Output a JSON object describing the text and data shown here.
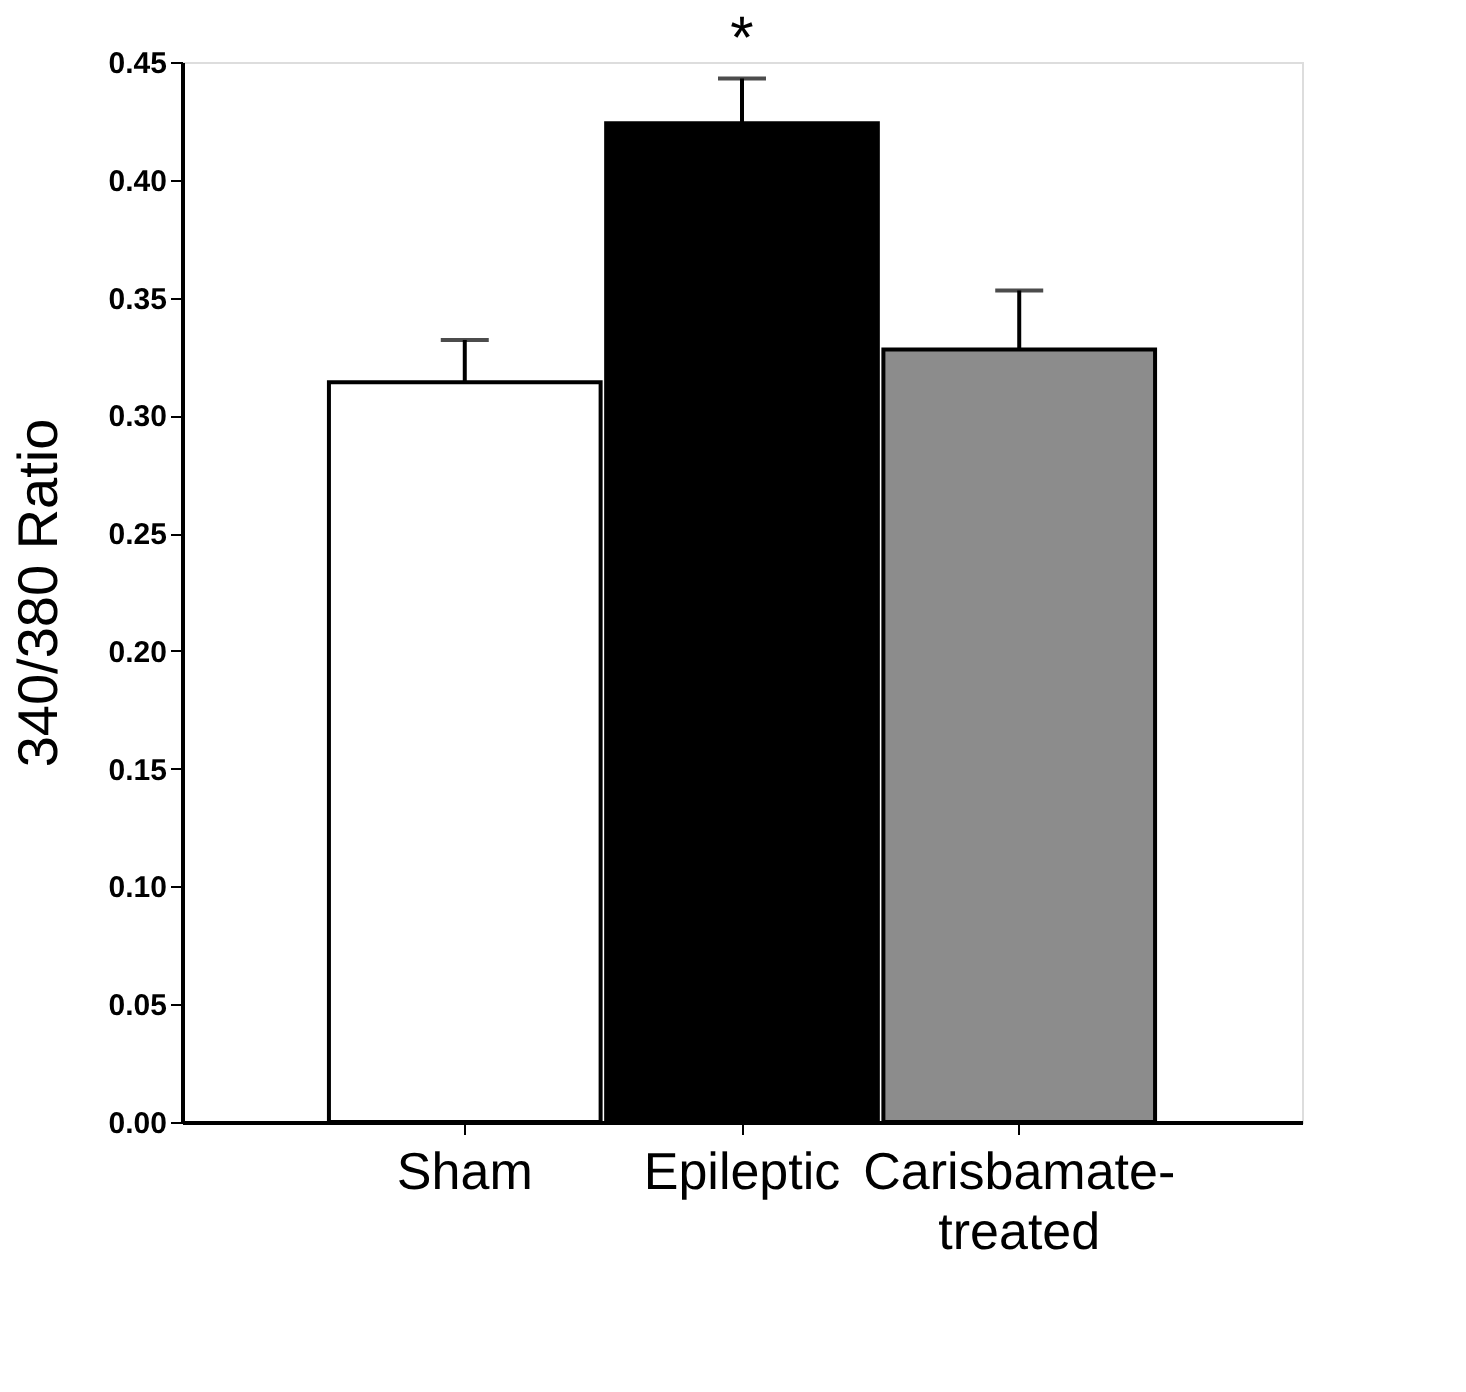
{
  "chart_data": {
    "type": "bar",
    "ylabel": "340/380 Ratio",
    "categories": [
      "Sham",
      "Epileptic",
      "Carisbamate-treated"
    ],
    "values": [
      0.314,
      0.424,
      0.328
    ],
    "colors": [
      "#ffffff",
      "#000000",
      "#8c8c8c"
    ],
    "errors": [
      [
        0.314,
        0.332
      ],
      [
        0.424,
        0.443
      ],
      [
        0.328,
        0.353
      ]
    ],
    "ylim": [
      0,
      0.45
    ],
    "yticks": [
      {
        "value": 0,
        "label": "0.00"
      },
      {
        "value": 0.05,
        "label": "0.05"
      },
      {
        "value": 0.1,
        "label": "0.10"
      },
      {
        "value": 0.15,
        "label": "0.15"
      },
      {
        "value": 0.2,
        "label": "0.20"
      },
      {
        "value": 0.25,
        "label": "0.25"
      },
      {
        "value": 0.3,
        "label": "0.30"
      },
      {
        "value": 0.35,
        "label": "0.35"
      },
      {
        "value": 0.4,
        "label": "0.40"
      },
      {
        "value": 0.45,
        "label": "0.45"
      }
    ],
    "annotations": [
      {
        "text": "*",
        "x": "Epileptic",
        "y": 0.443
      }
    ],
    "grid": false
  }
}
